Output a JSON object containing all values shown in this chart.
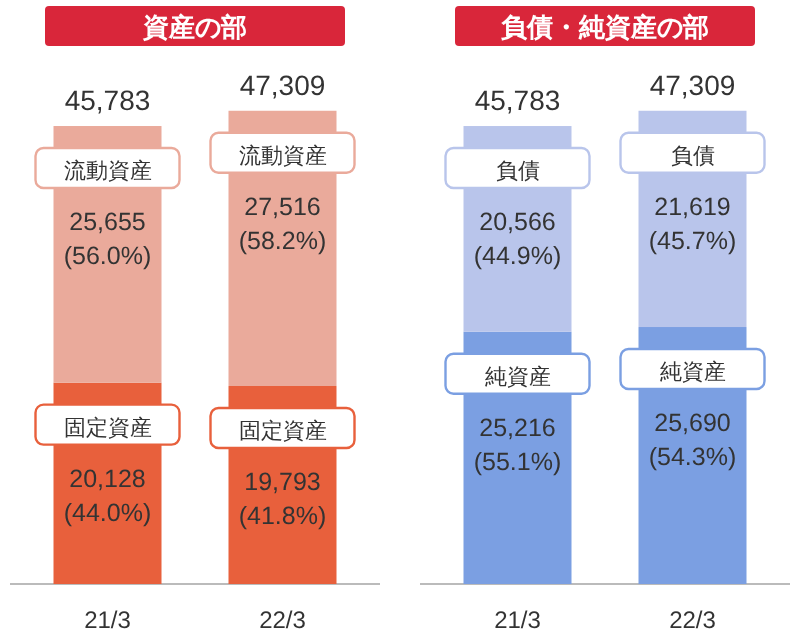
{
  "chart_data": [
    {
      "type": "bar",
      "title": "資産の部",
      "categories": [
        "21/3",
        "22/3"
      ],
      "stacked": true,
      "totals": [
        "45,783",
        "47,309"
      ],
      "series": [
        {
          "name": "固定資産",
          "color": "#e8603c",
          "values": [
            20128,
            19793
          ],
          "value_labels": [
            "20,128\n(44.0%)",
            "19,793\n(41.8%)"
          ]
        },
        {
          "name": "流動資産",
          "color": "#eaaa9b",
          "values": [
            25655,
            27516
          ],
          "value_labels": [
            "25,655\n(56.0%)",
            "27,516\n(58.2%)"
          ]
        }
      ]
    },
    {
      "type": "bar",
      "title": "負債・純資産の部",
      "categories": [
        "21/3",
        "22/3"
      ],
      "stacked": true,
      "totals": [
        "45,783",
        "47,309"
      ],
      "series": [
        {
          "name": "純資産",
          "color": "#7b9fe2",
          "values": [
            25216,
            25690
          ],
          "value_labels": [
            "25,216\n(55.1%)",
            "25,690\n(54.3%)"
          ]
        },
        {
          "name": "負債",
          "color": "#b9c5eb",
          "values": [
            20566,
            21619
          ],
          "value_labels": [
            "20,566\n(44.9%)",
            "21,619\n(45.7%)"
          ]
        }
      ]
    }
  ]
}
